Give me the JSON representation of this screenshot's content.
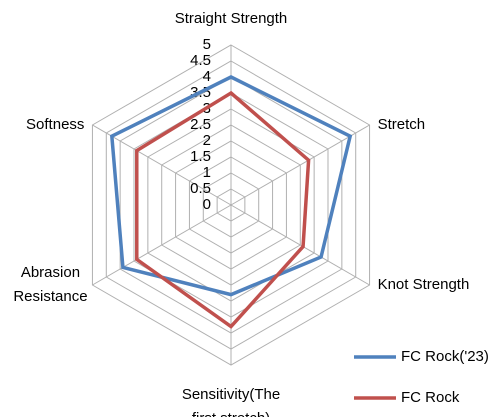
{
  "chart_data": {
    "type": "radar",
    "categories": [
      [
        "Straight Strength"
      ],
      [
        "Stretch"
      ],
      [
        "Knot Strength"
      ],
      [
        "Sensitivity(The",
        "first stretch)"
      ],
      [
        "Abrasion",
        "Resistance"
      ],
      [
        "Softness"
      ]
    ],
    "series": [
      {
        "name": "FC Rock('23)",
        "color": "#4f81bd",
        "values": [
          4,
          4.3,
          3.25,
          2.8,
          3.9,
          4.3
        ]
      },
      {
        "name": "FC Rock",
        "color": "#c0504d",
        "values": [
          3.5,
          2.8,
          2.6,
          3.8,
          3.4,
          3.4
        ]
      }
    ],
    "rlim": [
      0,
      5
    ],
    "rticks": [
      0,
      0.5,
      1,
      1.5,
      2,
      2.5,
      3,
      3.5,
      4,
      4.5,
      5
    ],
    "grid": true,
    "legend": "bottom-right"
  }
}
